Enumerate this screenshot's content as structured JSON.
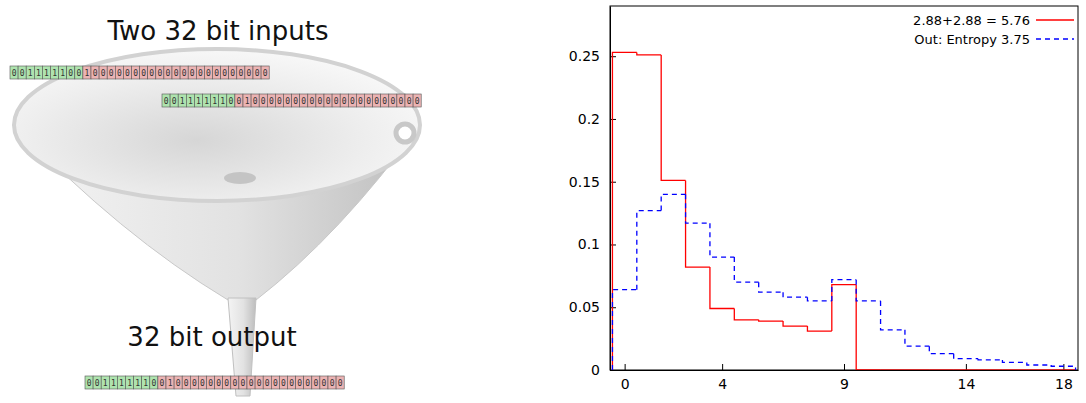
{
  "diagram": {
    "input_title": "Two 32 bit inputs",
    "output_title": "32 bit output",
    "inputs": [
      {
        "green": "001111100",
        "red": "10000000000000000000000"
      },
      {
        "green": "001111110",
        "red": "01000000000000000000000"
      }
    ],
    "output": {
      "green": "001111110",
      "red": "01000000000000000000000"
    }
  },
  "chart_data": {
    "type": "histogram",
    "bins": [
      -0.5,
      0.5,
      1.5,
      2.5,
      3.5,
      4.5,
      5.5,
      6.5,
      7.5,
      8.5,
      9.5,
      10.5,
      11.5,
      12.5,
      13.5,
      14.5,
      15.5,
      16.5,
      17.5,
      18.5
    ],
    "series": [
      {
        "name": "2.88+2.88 = 5.76",
        "color": "#ff0000",
        "line_style": "solid",
        "values": [
          0.253,
          0.251,
          0.151,
          0.082,
          0.049,
          0.04,
          0.039,
          0.035,
          0.031,
          0.068,
          0,
          0,
          0,
          0,
          0,
          0,
          0,
          0,
          0
        ]
      },
      {
        "name": "Out: Entropy 3.75",
        "color": "#0000ff",
        "line_style": "dashed",
        "values": [
          0.064,
          0.127,
          0.14,
          0.117,
          0.09,
          0.07,
          0.062,
          0.058,
          0.055,
          0.072,
          0.055,
          0.032,
          0.019,
          0.013,
          0.009,
          0.008,
          0.006,
          0.004,
          0.003
        ]
      }
    ],
    "xlim": [
      -0.6,
      18.6
    ],
    "xticks": [
      0,
      4,
      9,
      14,
      18
    ],
    "ylim": [
      0,
      0.29
    ],
    "yticks": [
      0,
      0.05,
      0.1,
      0.15,
      0.2,
      0.25
    ],
    "legend": "upper right"
  }
}
